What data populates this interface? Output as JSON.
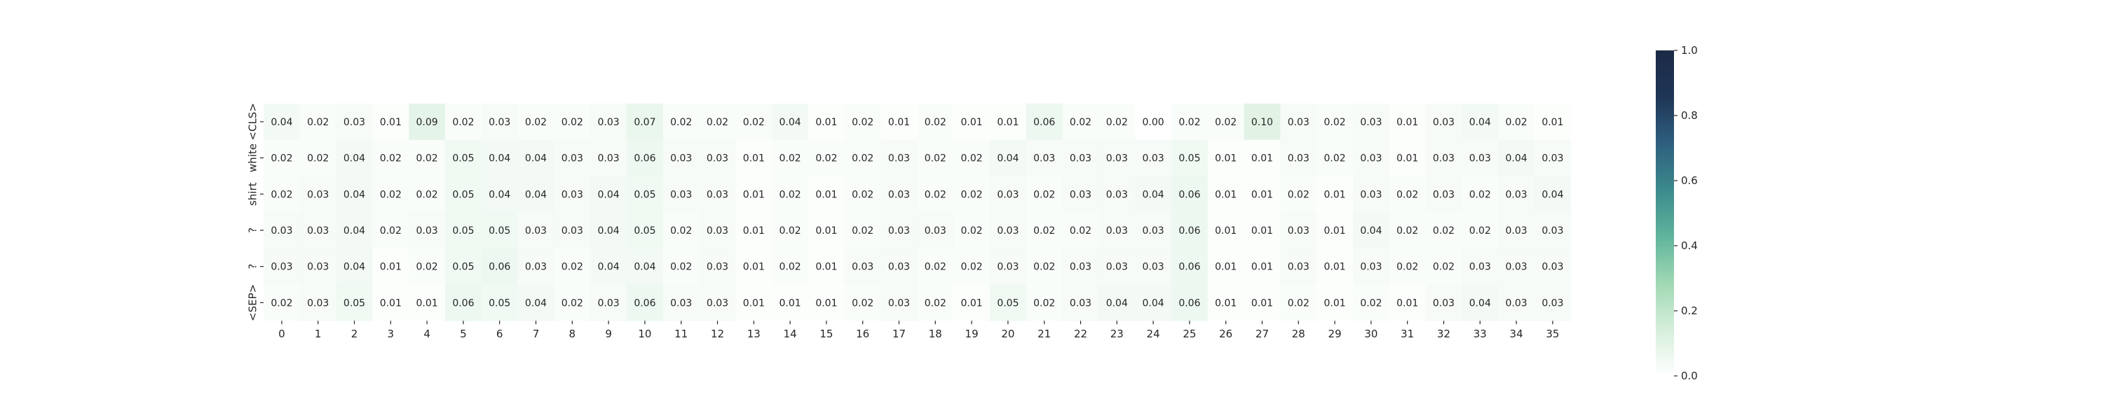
{
  "chart_data": {
    "type": "heatmap",
    "x_labels": [
      "0",
      "1",
      "2",
      "3",
      "4",
      "5",
      "6",
      "7",
      "8",
      "9",
      "10",
      "11",
      "12",
      "13",
      "14",
      "15",
      "16",
      "17",
      "18",
      "19",
      "20",
      "21",
      "22",
      "23",
      "24",
      "25",
      "26",
      "27",
      "28",
      "29",
      "30",
      "31",
      "32",
      "33",
      "34",
      "35"
    ],
    "y_labels": [
      "<CLS>",
      "white",
      "shirt",
      "?",
      "?",
      "<SEP>"
    ],
    "values": [
      [
        0.04,
        0.02,
        0.03,
        0.01,
        0.09,
        0.02,
        0.03,
        0.02,
        0.02,
        0.03,
        0.07,
        0.02,
        0.02,
        0.02,
        0.04,
        0.01,
        0.02,
        0.01,
        0.02,
        0.01,
        0.01,
        0.06,
        0.02,
        0.02,
        0.0,
        0.02,
        0.02,
        0.1,
        0.03,
        0.02,
        0.03,
        0.01,
        0.03,
        0.04,
        0.02,
        0.01
      ],
      [
        0.02,
        0.02,
        0.04,
        0.02,
        0.02,
        0.05,
        0.04,
        0.04,
        0.03,
        0.03,
        0.06,
        0.03,
        0.03,
        0.01,
        0.02,
        0.02,
        0.02,
        0.03,
        0.02,
        0.02,
        0.04,
        0.03,
        0.03,
        0.03,
        0.03,
        0.05,
        0.01,
        0.01,
        0.03,
        0.02,
        0.03,
        0.01,
        0.03,
        0.03,
        0.04,
        0.03
      ],
      [
        0.02,
        0.03,
        0.04,
        0.02,
        0.02,
        0.05,
        0.04,
        0.04,
        0.03,
        0.04,
        0.05,
        0.03,
        0.03,
        0.01,
        0.02,
        0.01,
        0.02,
        0.03,
        0.02,
        0.02,
        0.03,
        0.02,
        0.03,
        0.03,
        0.04,
        0.06,
        0.01,
        0.01,
        0.02,
        0.01,
        0.03,
        0.02,
        0.03,
        0.02,
        0.03,
        0.04
      ],
      [
        0.03,
        0.03,
        0.04,
        0.02,
        0.03,
        0.05,
        0.05,
        0.03,
        0.03,
        0.04,
        0.05,
        0.02,
        0.03,
        0.01,
        0.02,
        0.01,
        0.02,
        0.03,
        0.03,
        0.02,
        0.03,
        0.02,
        0.02,
        0.03,
        0.03,
        0.06,
        0.01,
        0.01,
        0.03,
        0.01,
        0.04,
        0.02,
        0.02,
        0.02,
        0.03,
        0.03
      ],
      [
        0.03,
        0.03,
        0.04,
        0.01,
        0.02,
        0.05,
        0.06,
        0.03,
        0.02,
        0.04,
        0.04,
        0.02,
        0.03,
        0.01,
        0.02,
        0.01,
        0.03,
        0.03,
        0.02,
        0.02,
        0.03,
        0.02,
        0.03,
        0.03,
        0.03,
        0.06,
        0.01,
        0.01,
        0.03,
        0.01,
        0.03,
        0.02,
        0.02,
        0.03,
        0.03,
        0.03
      ],
      [
        0.02,
        0.03,
        0.05,
        0.01,
        0.01,
        0.06,
        0.05,
        0.04,
        0.02,
        0.03,
        0.06,
        0.03,
        0.03,
        0.01,
        0.01,
        0.01,
        0.02,
        0.03,
        0.02,
        0.01,
        0.05,
        0.02,
        0.03,
        0.04,
        0.04,
        0.06,
        0.01,
        0.01,
        0.02,
        0.01,
        0.02,
        0.01,
        0.03,
        0.04,
        0.03,
        0.03
      ]
    ],
    "value_range": [
      0.0,
      1.0
    ],
    "colorbar": {
      "ticks": [
        "0.0",
        "0.2",
        "0.4",
        "0.6",
        "0.8",
        "1.0"
      ],
      "placement": "right"
    },
    "colormap": [
      "#ffffff",
      "#d5eedb",
      "#a0d8b3",
      "#5fb49c",
      "#3c8a8d",
      "#2e5f7e",
      "#1f3556",
      "#1b2a45"
    ],
    "title": "",
    "xlabel": "",
    "ylabel": "",
    "grid": false
  }
}
